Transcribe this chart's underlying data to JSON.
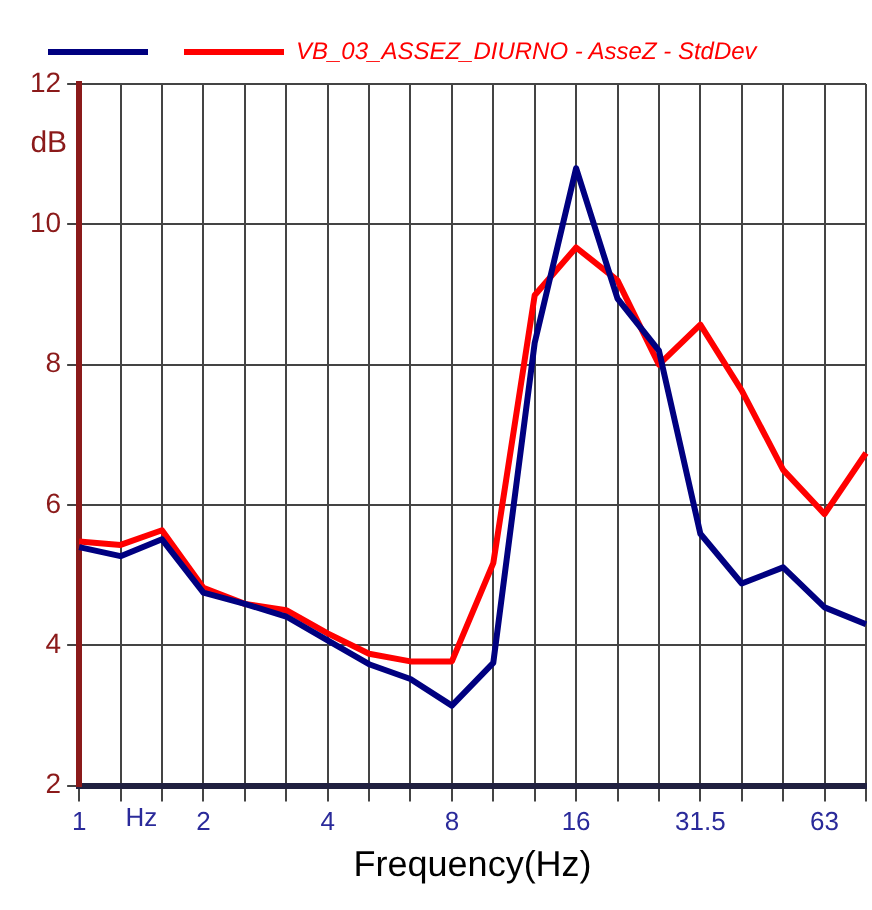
{
  "chart_data": {
    "type": "line",
    "xlabel": "Frequency(Hz)",
    "ylabel": "dB",
    "annotations": [
      "Hz"
    ],
    "categories": [
      "1",
      null,
      null,
      "2",
      null,
      null,
      "4",
      null,
      null,
      "8",
      null,
      null,
      "16",
      null,
      null,
      "31.5",
      null,
      null,
      "63",
      null
    ],
    "series": [
      {
        "color": "#000080",
        "values": [
          5.4,
          5.27,
          5.51,
          4.75,
          4.59,
          4.41,
          4.07,
          3.73,
          3.52,
          3.14,
          3.75,
          8.31,
          10.8,
          8.94,
          8.2,
          5.59,
          4.88,
          5.11,
          4.54,
          4.3
        ]
      },
      {
        "name": "VB_03_ASSEZ_DIURNO - AsseZ - StdDev",
        "color": "#ff0000",
        "values": [
          5.48,
          5.43,
          5.64,
          4.82,
          4.59,
          4.5,
          4.17,
          3.88,
          3.77,
          3.77,
          5.17,
          8.99,
          9.67,
          9.2,
          8.0,
          8.57,
          7.63,
          6.5,
          5.87,
          6.74
        ]
      }
    ],
    "ylim": [
      2,
      12
    ],
    "yticks": [
      2,
      4,
      6,
      8,
      10,
      12
    ],
    "grid": true,
    "legend": "top",
    "marker": "none",
    "line_style": "solid"
  }
}
